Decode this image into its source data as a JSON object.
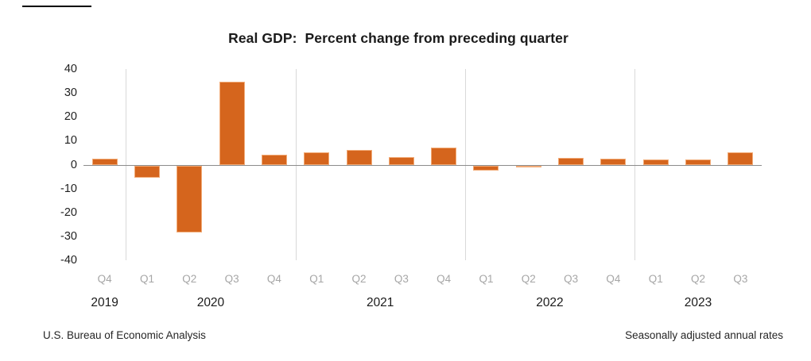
{
  "title": "Real GDP:  Percent change from preceding quarter",
  "footer": {
    "left": "U.S. Bureau of Economic Analysis",
    "right": "Seasonally adjusted annual rates"
  },
  "colors": {
    "bar_fill": "#d5651d",
    "bar_border": "#f2ab77",
    "axis_line": "#8c8c8c",
    "year_separator": "#d9d9d9",
    "quarter_label": "#a6a6a6",
    "year_label": "#1a1a1a",
    "title_text": "#1a1a1a",
    "footer_text": "#262626"
  },
  "chart_data": {
    "type": "bar",
    "title": "Real GDP:  Percent change from preceding quarter",
    "xlabel": "",
    "ylabel": "",
    "ylim": [
      -40,
      40
    ],
    "yticks": [
      40,
      30,
      20,
      10,
      0,
      -10,
      -20,
      -30,
      -40
    ],
    "grid": "vertical-year-separators-only",
    "legend": "none",
    "year_groups": [
      {
        "label": "2019",
        "count": 1
      },
      {
        "label": "2020",
        "count": 4
      },
      {
        "label": "2021",
        "count": 4
      },
      {
        "label": "2022",
        "count": 4
      },
      {
        "label": "2023",
        "count": 3
      }
    ],
    "points": [
      {
        "year": "2019",
        "quarter": "Q4",
        "value": 2.6
      },
      {
        "year": "2020",
        "quarter": "Q1",
        "value": -5.3
      },
      {
        "year": "2020",
        "quarter": "Q2",
        "value": -28.0
      },
      {
        "year": "2020",
        "quarter": "Q3",
        "value": 34.8
      },
      {
        "year": "2020",
        "quarter": "Q4",
        "value": 4.2
      },
      {
        "year": "2021",
        "quarter": "Q1",
        "value": 5.2
      },
      {
        "year": "2021",
        "quarter": "Q2",
        "value": 6.2
      },
      {
        "year": "2021",
        "quarter": "Q3",
        "value": 3.3
      },
      {
        "year": "2021",
        "quarter": "Q4",
        "value": 7.0
      },
      {
        "year": "2022",
        "quarter": "Q1",
        "value": -2.0
      },
      {
        "year": "2022",
        "quarter": "Q2",
        "value": -0.6
      },
      {
        "year": "2022",
        "quarter": "Q3",
        "value": 2.7
      },
      {
        "year": "2022",
        "quarter": "Q4",
        "value": 2.6
      },
      {
        "year": "2023",
        "quarter": "Q1",
        "value": 2.2
      },
      {
        "year": "2023",
        "quarter": "Q2",
        "value": 2.1
      },
      {
        "year": "2023",
        "quarter": "Q3",
        "value": 5.2
      }
    ]
  }
}
